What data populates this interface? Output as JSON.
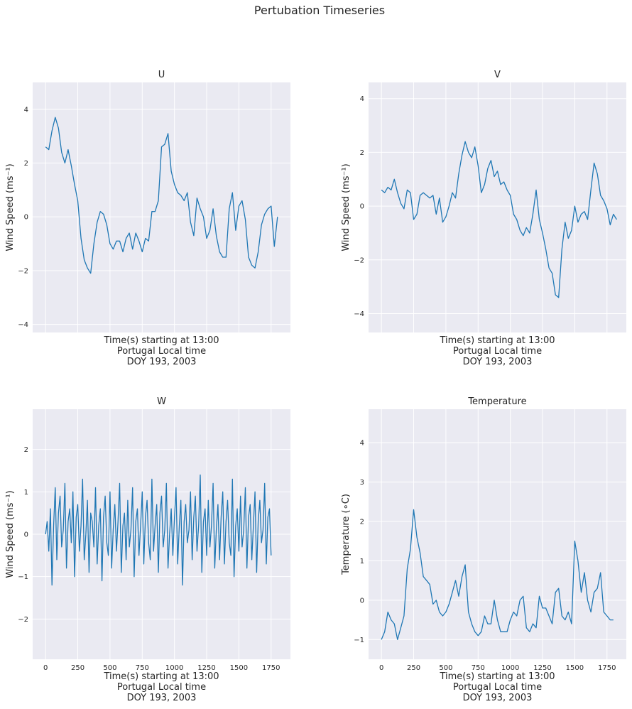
{
  "figure": {
    "suptitle": "Pertubation Timeseries",
    "xlabel_lines": [
      "Time(s) starting at 13:00",
      "Portugal Local time",
      "DOY 193, 2003"
    ]
  },
  "colors": {
    "background": "#eaeaf2",
    "grid": "#ffffff",
    "line": "#1f77b4",
    "text": "#262626",
    "tick_text": "#262626"
  },
  "chart_data": [
    {
      "type": "line",
      "title": "U",
      "ylabel": "Wind Speed (ms⁻¹)",
      "xlim": [
        -100,
        1900
      ],
      "ylim": [
        -4.3,
        5.0
      ],
      "xticks": [
        0,
        250,
        500,
        750,
        1000,
        1250,
        1500,
        1750
      ],
      "xtick_labels_shown": false,
      "yticks": [
        -4,
        -2,
        0,
        2,
        4
      ],
      "grid": true,
      "series": [
        {
          "x_start": 0,
          "x_step": 25,
          "values": [
            2.6,
            2.5,
            3.2,
            3.7,
            3.3,
            2.4,
            2.0,
            2.5,
            1.9,
            1.2,
            0.6,
            -0.8,
            -1.6,
            -1.9,
            -2.1,
            -1.0,
            -0.2,
            0.2,
            0.1,
            -0.3,
            -1.0,
            -1.2,
            -0.9,
            -0.9,
            -1.3,
            -0.8,
            -0.6,
            -1.2,
            -0.6,
            -0.9,
            -1.3,
            -0.8,
            -0.9,
            0.2,
            0.2,
            0.6,
            2.6,
            2.7,
            3.1,
            1.7,
            1.2,
            0.9,
            0.8,
            0.6,
            0.9,
            -0.2,
            -0.7,
            0.7,
            0.3,
            0.0,
            -0.8,
            -0.5,
            0.3,
            -0.7,
            -1.3,
            -1.5,
            -1.5,
            0.3,
            0.9,
            -0.5,
            0.4,
            0.6,
            -0.1,
            -1.5,
            -1.8,
            -1.9,
            -1.3,
            -0.3,
            0.1,
            0.3,
            0.4,
            -1.1,
            0.0
          ]
        }
      ]
    },
    {
      "type": "line",
      "title": "V",
      "ylabel": "Wind Speed (ms⁻¹)",
      "xlim": [
        -100,
        1900
      ],
      "ylim": [
        -4.7,
        4.6
      ],
      "xticks": [
        0,
        250,
        500,
        750,
        1000,
        1250,
        1500,
        1750
      ],
      "xtick_labels_shown": false,
      "yticks": [
        -4,
        -2,
        0,
        2,
        4
      ],
      "grid": true,
      "series": [
        {
          "x_start": 0,
          "x_step": 25,
          "values": [
            0.6,
            0.5,
            0.7,
            0.6,
            1.0,
            0.5,
            0.1,
            -0.1,
            0.6,
            0.5,
            -0.5,
            -0.3,
            0.4,
            0.5,
            0.4,
            0.3,
            0.4,
            -0.3,
            0.3,
            -0.6,
            -0.4,
            0.0,
            0.5,
            0.3,
            1.2,
            1.9,
            2.4,
            2.0,
            1.8,
            2.2,
            1.5,
            0.5,
            0.8,
            1.4,
            1.7,
            1.1,
            1.3,
            0.8,
            0.9,
            0.6,
            0.4,
            -0.3,
            -0.5,
            -0.9,
            -1.1,
            -0.8,
            -1.0,
            -0.3,
            0.6,
            -0.5,
            -1.0,
            -1.6,
            -2.3,
            -2.5,
            -3.3,
            -3.4,
            -1.6,
            -0.6,
            -1.2,
            -0.9,
            0.0,
            -0.6,
            -0.3,
            -0.2,
            -0.5,
            0.6,
            1.6,
            1.2,
            0.4,
            0.2,
            -0.1,
            -0.7,
            -0.3,
            -0.5
          ]
        }
      ]
    },
    {
      "type": "line",
      "title": "W",
      "ylabel": "Wind Speed (ms⁻¹)",
      "xlim": [
        -100,
        1900
      ],
      "ylim": [
        -2.95,
        2.95
      ],
      "xticks": [
        0,
        250,
        500,
        750,
        1000,
        1250,
        1500,
        1750
      ],
      "xtick_labels_shown": true,
      "yticks": [
        -2,
        -1,
        0,
        1,
        2
      ],
      "grid": true,
      "series": [
        {
          "x_start": 0,
          "x_step": 12.5,
          "values": [
            0.0,
            0.3,
            -0.4,
            0.6,
            -1.2,
            0.2,
            1.1,
            -0.6,
            0.5,
            0.9,
            -0.3,
            0.1,
            1.2,
            -0.8,
            0.3,
            0.6,
            -0.2,
            1.0,
            -1.0,
            0.4,
            0.7,
            -0.4,
            0.2,
            1.3,
            -0.6,
            0.0,
            0.8,
            -0.9,
            0.5,
            0.3,
            -0.3,
            1.1,
            -0.7,
            0.2,
            0.6,
            -1.1,
            0.4,
            0.9,
            -0.2,
            -0.5,
            1.0,
            -0.8,
            0.1,
            0.7,
            -0.4,
            0.3,
            1.2,
            -0.9,
            0.2,
            0.5,
            -0.6,
            0.8,
            -0.3,
            0.1,
            1.1,
            -1.0,
            0.3,
            0.6,
            -0.5,
            0.2,
            1.0,
            -0.7,
            0.4,
            0.8,
            -0.2,
            -0.6,
            1.3,
            -0.4,
            0.2,
            0.7,
            -0.9,
            0.5,
            0.9,
            -0.3,
            0.1,
            1.2,
            -0.8,
            0.0,
            0.6,
            -0.5,
            0.4,
            1.1,
            -0.7,
            0.2,
            0.8,
            -1.2,
            0.3,
            0.7,
            -0.2,
            0.1,
            1.0,
            -0.6,
            0.4,
            0.9,
            -0.4,
            0.2,
            1.4,
            -0.9,
            0.3,
            0.6,
            -0.5,
            0.8,
            -0.3,
            0.2,
            1.2,
            -0.8,
            0.1,
            0.7,
            -0.6,
            0.4,
            1.0,
            -0.7,
            0.3,
            0.8,
            -0.2,
            -0.5,
            1.3,
            -1.0,
            0.2,
            0.6,
            -0.4,
            0.9,
            -0.3,
            0.1,
            1.1,
            -0.8,
            0.4,
            0.7,
            -0.6,
            0.2,
            1.0,
            -0.9,
            0.3,
            0.8,
            -0.2,
            0.1,
            1.2,
            -0.7,
            0.4,
            0.6,
            -0.5
          ]
        }
      ]
    },
    {
      "type": "line",
      "title": "Temperature",
      "ylabel": "Temperature (∘C)",
      "xlim": [
        -100,
        1900
      ],
      "ylim": [
        -1.5,
        4.85
      ],
      "xticks": [
        0,
        250,
        500,
        750,
        1000,
        1250,
        1500,
        1750
      ],
      "xtick_labels_shown": true,
      "yticks": [
        -1,
        0,
        1,
        2,
        3,
        4
      ],
      "grid": true,
      "series": [
        {
          "x_start": 0,
          "x_step": 25,
          "values": [
            -1.0,
            -0.8,
            -0.3,
            -0.5,
            -0.6,
            -1.0,
            -0.7,
            -0.4,
            0.8,
            1.3,
            2.3,
            1.6,
            1.2,
            0.6,
            0.5,
            0.4,
            -0.1,
            0.0,
            -0.3,
            -0.4,
            -0.3,
            -0.1,
            0.2,
            0.5,
            0.1,
            0.6,
            0.9,
            -0.3,
            -0.6,
            -0.8,
            -0.9,
            -0.8,
            -0.4,
            -0.6,
            -0.6,
            0.0,
            -0.5,
            -0.8,
            -0.8,
            -0.8,
            -0.5,
            -0.3,
            -0.4,
            0.0,
            0.1,
            -0.7,
            -0.8,
            -0.6,
            -0.7,
            0.1,
            -0.2,
            -0.2,
            -0.4,
            -0.6,
            0.2,
            0.3,
            -0.4,
            -0.5,
            -0.3,
            -0.6,
            1.5,
            1.0,
            0.2,
            0.7,
            0.0,
            -0.3,
            0.2,
            0.3,
            0.7,
            -0.3,
            -0.4,
            -0.5,
            -0.5
          ]
        }
      ]
    }
  ]
}
